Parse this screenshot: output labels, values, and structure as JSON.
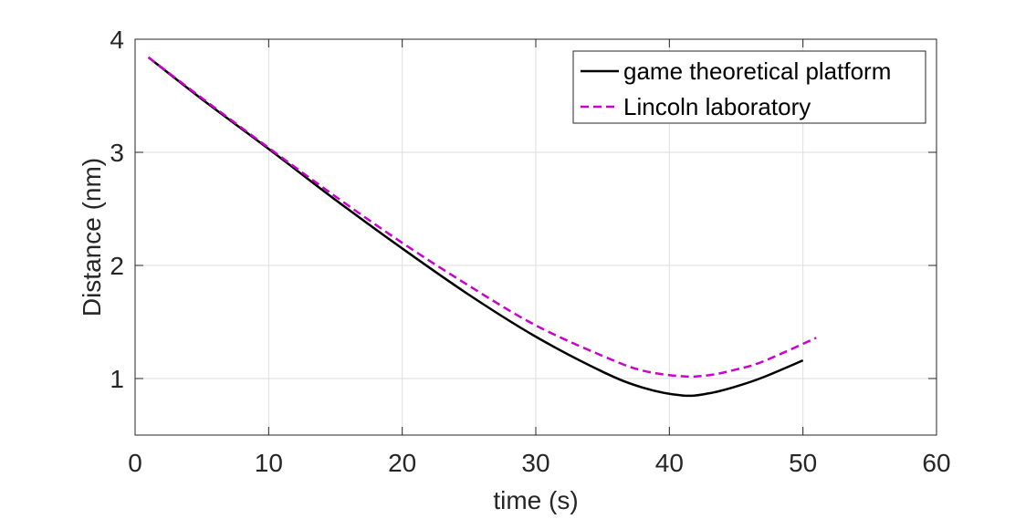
{
  "chart_data": {
    "type": "line",
    "title": "",
    "xlabel": "time (s)",
    "ylabel": "Distance (nm)",
    "xlim": [
      0,
      60
    ],
    "ylim": [
      0.5,
      4
    ],
    "xticks": [
      0,
      10,
      20,
      30,
      40,
      50,
      60
    ],
    "yticks": [
      1,
      2,
      3,
      4
    ],
    "xtick_labels": [
      "0",
      "10",
      "20",
      "30",
      "40",
      "50",
      "60"
    ],
    "ytick_labels": [
      "1",
      "2",
      "3",
      "4"
    ],
    "grid": true,
    "legend_position": "top-right",
    "series": [
      {
        "name": "game theoretical platform",
        "color": "#000000",
        "style": "solid",
        "x": [
          1,
          5,
          10,
          15,
          20,
          25,
          30,
          35,
          38,
          41,
          43,
          45,
          47,
          50
        ],
        "y": [
          3.84,
          3.47,
          3.03,
          2.58,
          2.15,
          1.74,
          1.37,
          1.06,
          0.92,
          0.85,
          0.87,
          0.93,
          1.01,
          1.16
        ]
      },
      {
        "name": "Lincoln laboratory",
        "color": "#cc00cc",
        "style": "dashed",
        "x": [
          1,
          5,
          10,
          15,
          20,
          25,
          30,
          35,
          38,
          41,
          43,
          45,
          47,
          51
        ],
        "y": [
          3.84,
          3.48,
          3.04,
          2.61,
          2.2,
          1.82,
          1.47,
          1.2,
          1.07,
          1.02,
          1.03,
          1.08,
          1.15,
          1.36
        ]
      }
    ]
  }
}
